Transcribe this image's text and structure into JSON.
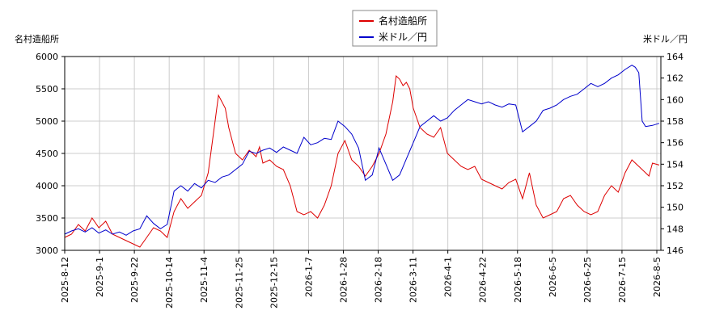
{
  "chart_data": {
    "type": "line",
    "left_axis_title": "名村造船所",
    "right_axis_title": "米ドル／円",
    "legend": [
      "名村造船所",
      "米ドル／円"
    ],
    "legend_position": "top-center",
    "grid": true,
    "x_ticks": [
      "2025-8-12",
      "2025-9-1",
      "2025-9-22",
      "2025-10-14",
      "2025-11-4",
      "2025-11-25",
      "2025-12-15",
      "2026-1-7",
      "2026-1-28",
      "2026-2-18",
      "2026-3-11",
      "2026-4-1",
      "2026-4-22",
      "2026-5-18",
      "2026-6-5",
      "2026-6-25",
      "2026-7-15",
      "2026-8-5"
    ],
    "y_left_ticks": [
      "3000",
      "3500",
      "4000",
      "4500",
      "5000",
      "5500",
      "6000"
    ],
    "y_right_ticks": [
      "146",
      "148",
      "150",
      "152",
      "154",
      "156",
      "158",
      "160",
      "162",
      "164"
    ],
    "y_left_lim": [
      3000,
      6000
    ],
    "y_right_lim": [
      146,
      164
    ],
    "colors": {
      "stock": "#dd0000",
      "fx": "#0000cc",
      "grid": "#cccccc",
      "frame": "#000000"
    },
    "series": [
      {
        "name": "名村造船所",
        "axis": "left",
        "points": [
          [
            0,
            3200
          ],
          [
            2,
            3250
          ],
          [
            4,
            3400
          ],
          [
            6,
            3300
          ],
          [
            8,
            3500
          ],
          [
            10,
            3350
          ],
          [
            12,
            3450
          ],
          [
            14,
            3250
          ],
          [
            16,
            3200
          ],
          [
            18,
            3150
          ],
          [
            20,
            3100
          ],
          [
            22,
            3050
          ],
          [
            24,
            3200
          ],
          [
            26,
            3350
          ],
          [
            28,
            3300
          ],
          [
            30,
            3200
          ],
          [
            32,
            3600
          ],
          [
            34,
            3800
          ],
          [
            36,
            3650
          ],
          [
            38,
            3750
          ],
          [
            40,
            3850
          ],
          [
            42,
            4200
          ],
          [
            44,
            5000
          ],
          [
            45,
            5400
          ],
          [
            46,
            5300
          ],
          [
            47,
            5200
          ],
          [
            48,
            4900
          ],
          [
            49,
            4700
          ],
          [
            50,
            4500
          ],
          [
            52,
            4400
          ],
          [
            54,
            4550
          ],
          [
            56,
            4450
          ],
          [
            57,
            4600
          ],
          [
            58,
            4350
          ],
          [
            60,
            4400
          ],
          [
            62,
            4300
          ],
          [
            64,
            4250
          ],
          [
            66,
            4000
          ],
          [
            68,
            3600
          ],
          [
            70,
            3550
          ],
          [
            72,
            3600
          ],
          [
            74,
            3500
          ],
          [
            76,
            3700
          ],
          [
            78,
            4000
          ],
          [
            80,
            4500
          ],
          [
            82,
            4700
          ],
          [
            84,
            4400
          ],
          [
            86,
            4300
          ],
          [
            88,
            4150
          ],
          [
            90,
            4300
          ],
          [
            92,
            4500
          ],
          [
            94,
            4800
          ],
          [
            96,
            5300
          ],
          [
            97,
            5700
          ],
          [
            98,
            5650
          ],
          [
            99,
            5550
          ],
          [
            100,
            5600
          ],
          [
            101,
            5500
          ],
          [
            102,
            5200
          ],
          [
            104,
            4900
          ],
          [
            106,
            4800
          ],
          [
            108,
            4750
          ],
          [
            110,
            4900
          ],
          [
            112,
            4500
          ],
          [
            114,
            4400
          ],
          [
            116,
            4300
          ],
          [
            118,
            4250
          ],
          [
            120,
            4300
          ],
          [
            122,
            4100
          ],
          [
            124,
            4050
          ],
          [
            126,
            4000
          ],
          [
            128,
            3950
          ],
          [
            130,
            4050
          ],
          [
            132,
            4100
          ],
          [
            134,
            3800
          ],
          [
            136,
            4200
          ],
          [
            138,
            3700
          ],
          [
            140,
            3500
          ],
          [
            142,
            3550
          ],
          [
            144,
            3600
          ],
          [
            146,
            3800
          ],
          [
            148,
            3850
          ],
          [
            150,
            3700
          ],
          [
            152,
            3600
          ],
          [
            154,
            3550
          ],
          [
            156,
            3600
          ],
          [
            158,
            3850
          ],
          [
            160,
            4000
          ],
          [
            162,
            3900
          ],
          [
            164,
            4200
          ],
          [
            166,
            4400
          ],
          [
            168,
            4300
          ],
          [
            170,
            4200
          ],
          [
            171,
            4150
          ],
          [
            172,
            4350
          ],
          [
            174,
            4320
          ]
        ]
      },
      {
        "name": "米ドル／円",
        "axis": "right",
        "points": [
          [
            0,
            147.5
          ],
          [
            2,
            147.8
          ],
          [
            4,
            148.0
          ],
          [
            6,
            147.7
          ],
          [
            8,
            148.1
          ],
          [
            10,
            147.6
          ],
          [
            12,
            147.9
          ],
          [
            14,
            147.5
          ],
          [
            16,
            147.7
          ],
          [
            18,
            147.4
          ],
          [
            20,
            147.8
          ],
          [
            22,
            148.0
          ],
          [
            24,
            149.2
          ],
          [
            26,
            148.5
          ],
          [
            28,
            148.0
          ],
          [
            30,
            148.4
          ],
          [
            32,
            151.5
          ],
          [
            34,
            152.0
          ],
          [
            36,
            151.5
          ],
          [
            38,
            152.2
          ],
          [
            40,
            151.8
          ],
          [
            42,
            152.5
          ],
          [
            44,
            152.3
          ],
          [
            46,
            152.8
          ],
          [
            48,
            153.0
          ],
          [
            50,
            153.5
          ],
          [
            52,
            154.0
          ],
          [
            54,
            155.2
          ],
          [
            56,
            155.0
          ],
          [
            58,
            155.3
          ],
          [
            60,
            155.5
          ],
          [
            62,
            155.1
          ],
          [
            64,
            155.6
          ],
          [
            66,
            155.3
          ],
          [
            68,
            155.0
          ],
          [
            70,
            156.5
          ],
          [
            72,
            155.8
          ],
          [
            74,
            156.0
          ],
          [
            76,
            156.4
          ],
          [
            78,
            156.3
          ],
          [
            80,
            158.0
          ],
          [
            82,
            157.5
          ],
          [
            84,
            156.8
          ],
          [
            86,
            155.5
          ],
          [
            88,
            152.5
          ],
          [
            90,
            153.0
          ],
          [
            92,
            155.5
          ],
          [
            94,
            154.0
          ],
          [
            96,
            152.5
          ],
          [
            98,
            153.0
          ],
          [
            100,
            154.5
          ],
          [
            102,
            156.0
          ],
          [
            104,
            157.5
          ],
          [
            106,
            158.0
          ],
          [
            108,
            158.5
          ],
          [
            110,
            158.0
          ],
          [
            112,
            158.3
          ],
          [
            114,
            159.0
          ],
          [
            116,
            159.5
          ],
          [
            118,
            160.0
          ],
          [
            120,
            159.8
          ],
          [
            122,
            159.6
          ],
          [
            124,
            159.8
          ],
          [
            126,
            159.5
          ],
          [
            128,
            159.3
          ],
          [
            130,
            159.6
          ],
          [
            132,
            159.5
          ],
          [
            134,
            157.0
          ],
          [
            136,
            157.5
          ],
          [
            138,
            158.0
          ],
          [
            140,
            159.0
          ],
          [
            142,
            159.2
          ],
          [
            144,
            159.5
          ],
          [
            146,
            160.0
          ],
          [
            148,
            160.3
          ],
          [
            150,
            160.5
          ],
          [
            152,
            161.0
          ],
          [
            154,
            161.5
          ],
          [
            156,
            161.2
          ],
          [
            158,
            161.5
          ],
          [
            160,
            162.0
          ],
          [
            162,
            162.3
          ],
          [
            164,
            162.8
          ],
          [
            166,
            163.2
          ],
          [
            167,
            163.0
          ],
          [
            168,
            162.5
          ],
          [
            169,
            158.0
          ],
          [
            170,
            157.5
          ],
          [
            172,
            157.6
          ],
          [
            174,
            157.8
          ]
        ]
      }
    ]
  }
}
